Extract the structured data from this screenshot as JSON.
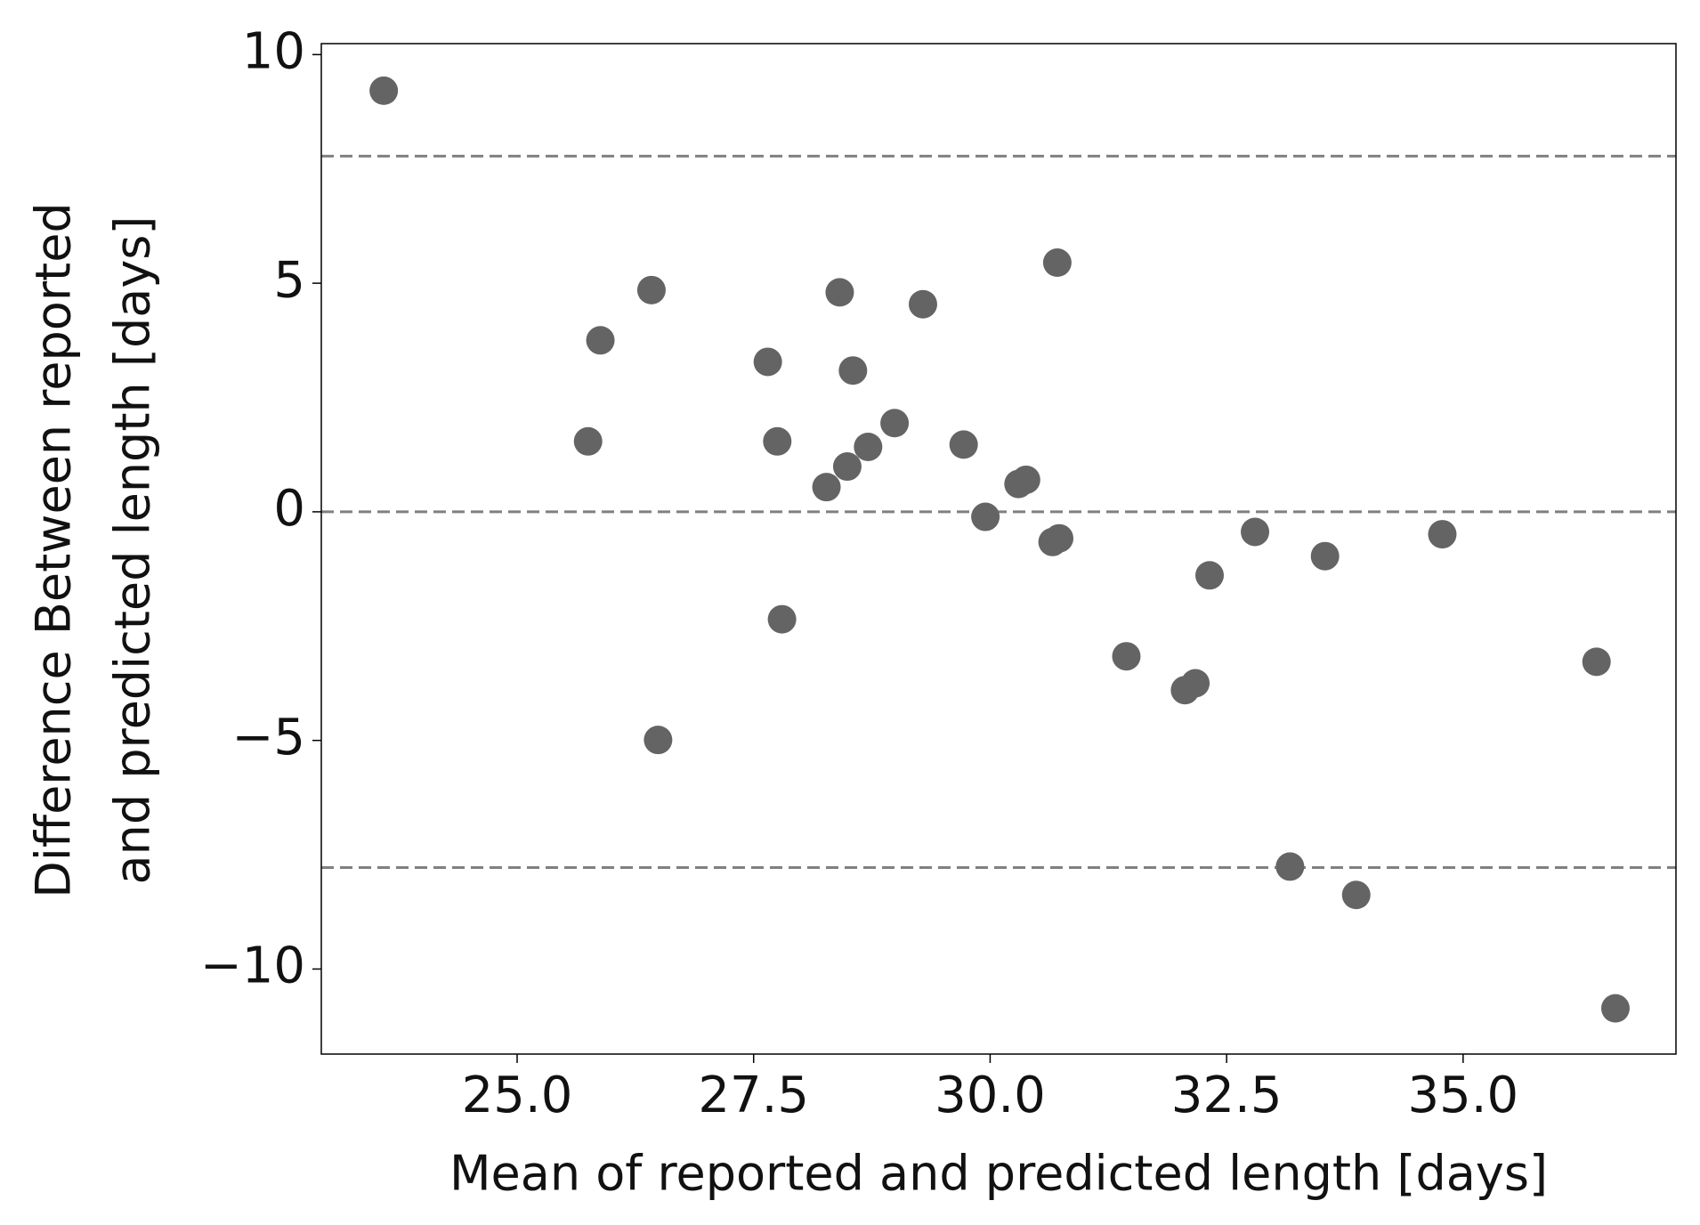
{
  "chart_data": {
    "type": "scatter",
    "xlabel": "Mean of reported and predicted length [days]",
    "ylabel": [
      "Difference Between reported",
      "and predicted length [days]"
    ],
    "color": "#646464",
    "x": [
      23.59,
      26.42,
      25.88,
      25.75,
      26.49,
      27.65,
      27.75,
      27.8,
      28.27,
      28.41,
      28.49,
      28.55,
      28.71,
      28.99,
      29.29,
      29.72,
      29.95,
      30.3,
      30.38,
      30.66,
      30.73,
      30.71,
      31.44,
      32.06,
      32.17,
      32.32,
      32.8,
      33.17,
      33.54,
      33.87,
      34.78,
      36.41,
      36.61
    ],
    "values": [
      9.21,
      4.85,
      3.75,
      1.54,
      -4.99,
      3.28,
      1.54,
      -2.35,
      0.54,
      4.8,
      0.99,
      3.09,
      1.42,
      1.94,
      4.54,
      1.47,
      -0.11,
      0.61,
      0.7,
      -0.66,
      -0.58,
      5.45,
      -3.16,
      -3.9,
      -3.75,
      -1.39,
      -0.44,
      -7.76,
      -0.97,
      -8.38,
      -0.49,
      -3.28,
      -10.86
    ],
    "hlines": [
      7.78,
      0,
      -7.78
    ],
    "hline_color": "#808080",
    "xlim": [
      22.93,
      37.25
    ],
    "ylim": [
      -11.86,
      10.24
    ],
    "xticks": [
      {
        "value": 25,
        "label": "25.0"
      },
      {
        "value": 27.5,
        "label": "27.5"
      },
      {
        "value": 30,
        "label": "30.0"
      },
      {
        "value": 32.5,
        "label": "32.5"
      },
      {
        "value": 35,
        "label": "35.0"
      }
    ],
    "yticks": [
      {
        "value": -10,
        "label": "−10"
      },
      {
        "value": -5,
        "label": "−5"
      },
      0,
      5,
      10
    ]
  }
}
